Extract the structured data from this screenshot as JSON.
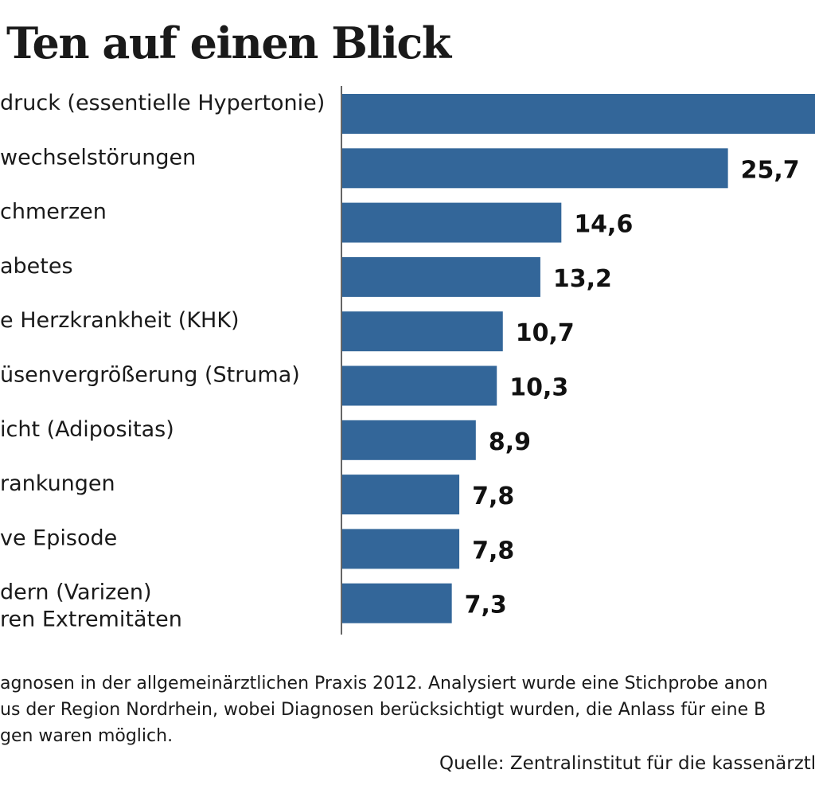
{
  "chart_data": {
    "type": "bar",
    "orientation": "horizontal",
    "title": "Ten auf einen Blick",
    "categories": [
      [
        "druck (essentielle Hypertonie)"
      ],
      [
        "wechselstörungen"
      ],
      [
        "chmerzen"
      ],
      [
        "abetes"
      ],
      [
        "e Herzkrankheit (KHK)"
      ],
      [
        "üsenvergrößerung (Struma)"
      ],
      [
        "icht (Adipositas)"
      ],
      [
        "rankungen"
      ],
      [
        "ve Episode"
      ],
      [
        "dern (Varizen)",
        "ren Extremitäten"
      ]
    ],
    "values": [
      31.5,
      25.7,
      14.6,
      13.2,
      10.7,
      10.3,
      8.9,
      7.8,
      7.8,
      7.3
    ],
    "value_labels": [
      "",
      "25,7",
      "14,6",
      "13,2",
      "10,7",
      "10,3",
      "8,9",
      "7,8",
      "7,8",
      "7,3"
    ],
    "xlim": [
      0,
      31.5
    ],
    "bar_color": "#336699",
    "xlabel": "",
    "ylabel": ""
  },
  "footnote": [
    "agnosen in der allgemeinärztlichen Praxis 2012. Analysiert wurde eine Stichprobe anon",
    "us der Region Nordrhein, wobei Diagnosen berücksichtigt wurden, die Anlass für eine B",
    "gen waren möglich."
  ],
  "source": "Quelle: Zentralinstitut für die kassenärztl"
}
